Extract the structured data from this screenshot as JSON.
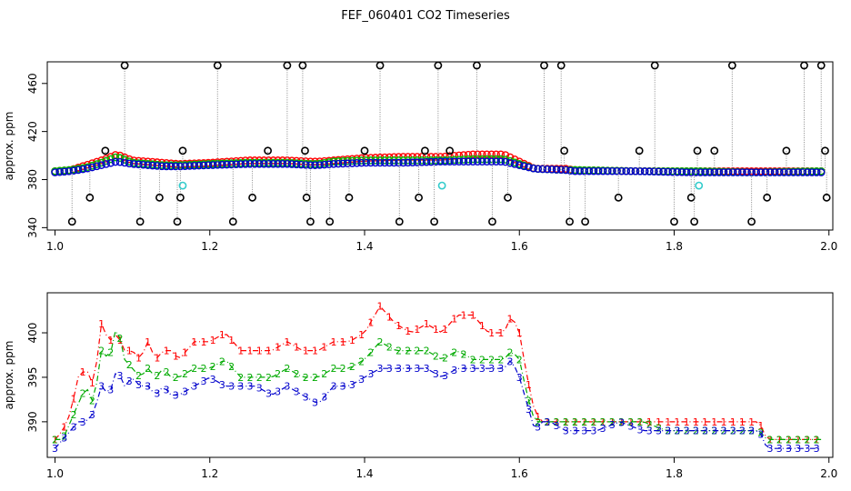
{
  "title": "FEF_060401  CO2 Timeseries",
  "chart_data": [
    {
      "type": "scatter",
      "ylabel": "approx. ppm",
      "xlabel": "",
      "xlim": [
        0.99,
        2.005
      ],
      "ylim": [
        338,
        478
      ],
      "xticks": [
        1.0,
        1.2,
        1.4,
        1.6,
        1.8,
        2.0
      ],
      "xtick_labels": [
        "1.0",
        "1.2",
        "1.4",
        "1.6",
        "1.8",
        "2.0"
      ],
      "yticks": [
        340,
        380,
        420,
        460
      ],
      "ytick_labels": [
        "340",
        "380",
        "420",
        "460"
      ],
      "series": [
        {
          "name": "red",
          "color": "#ff0000",
          "x": [
            1.0,
            1.02,
            1.04,
            1.06,
            1.08,
            1.1,
            1.12,
            1.14,
            1.16,
            1.2,
            1.25,
            1.3,
            1.33,
            1.34,
            1.36,
            1.4,
            1.45,
            1.5,
            1.54,
            1.58,
            1.6,
            1.62,
            1.66,
            1.67,
            1.75,
            1.82,
            1.83,
            1.9,
            1.99
          ],
          "values": [
            387,
            388,
            392,
            396,
            401,
            396,
            395,
            394,
            393,
            394,
            396,
            396,
            395,
            395,
            396,
            398,
            399,
            399,
            401,
            401,
            395,
            389,
            389,
            388,
            387,
            387,
            387,
            387,
            387
          ]
        },
        {
          "name": "green",
          "color": "#00bb00",
          "x": [
            1.0,
            1.02,
            1.04,
            1.06,
            1.08,
            1.1,
            1.12,
            1.14,
            1.16,
            1.2,
            1.25,
            1.3,
            1.33,
            1.34,
            1.36,
            1.4,
            1.45,
            1.5,
            1.54,
            1.58,
            1.6,
            1.62,
            1.66,
            1.67,
            1.75,
            1.82,
            1.83,
            1.9,
            1.99
          ],
          "values": [
            387,
            388,
            390,
            394,
            399,
            394,
            393,
            392,
            392,
            393,
            394,
            394,
            393,
            393,
            395,
            396,
            396,
            396,
            397,
            397,
            393,
            389,
            388,
            388,
            387,
            387,
            387,
            386,
            387
          ]
        },
        {
          "name": "blue",
          "color": "#0000cc",
          "x": [
            1.0,
            1.02,
            1.04,
            1.06,
            1.08,
            1.1,
            1.12,
            1.14,
            1.16,
            1.2,
            1.25,
            1.3,
            1.33,
            1.34,
            1.36,
            1.4,
            1.45,
            1.5,
            1.54,
            1.58,
            1.6,
            1.62,
            1.66,
            1.67,
            1.75,
            1.82,
            1.83,
            1.9,
            1.99
          ],
          "values": [
            386,
            387,
            389,
            392,
            395,
            393,
            392,
            391,
            391,
            392,
            393,
            393,
            392,
            392,
            393,
            394,
            394,
            395,
            395,
            395,
            392,
            389,
            388,
            387,
            387,
            386,
            386,
            386,
            386
          ]
        },
        {
          "name": "black-outliers",
          "color": "#000000",
          "x": [
            1.022,
            1.045,
            1.065,
            1.09,
            1.11,
            1.135,
            1.158,
            1.162,
            1.165,
            1.21,
            1.23,
            1.255,
            1.275,
            1.3,
            1.32,
            1.323,
            1.325,
            1.33,
            1.355,
            1.38,
            1.4,
            1.42,
            1.445,
            1.47,
            1.478,
            1.49,
            1.495,
            1.51,
            1.545,
            1.565,
            1.585,
            1.632,
            1.654,
            1.658,
            1.665,
            1.685,
            1.728,
            1.755,
            1.775,
            1.8,
            1.822,
            1.826,
            1.83,
            1.852,
            1.875,
            1.9,
            1.92,
            1.945,
            1.968,
            1.99,
            1.995,
            1.997
          ],
          "values": [
            345,
            365,
            404,
            475,
            345,
            365,
            345,
            365,
            404,
            475,
            345,
            365,
            404,
            475,
            475,
            404,
            365,
            345,
            345,
            365,
            404,
            475,
            345,
            365,
            404,
            345,
            475,
            404,
            475,
            345,
            365,
            475,
            475,
            404,
            345,
            345,
            365,
            404,
            475,
            345,
            365,
            345,
            404,
            404,
            475,
            345,
            365,
            404,
            475,
            475,
            404,
            365
          ]
        },
        {
          "name": "cyan",
          "color": "#33cccc",
          "x": [
            1.165,
            1.5,
            1.832
          ],
          "values": [
            375,
            375,
            375
          ]
        }
      ]
    },
    {
      "type": "line",
      "ylabel": "approx. ppm",
      "xlabel": "",
      "xlim": [
        0.99,
        2.005
      ],
      "ylim": [
        386,
        404.5
      ],
      "xticks": [
        1.0,
        1.2,
        1.4,
        1.6,
        1.8,
        2.0
      ],
      "xtick_labels": [
        "1.0",
        "1.2",
        "1.4",
        "1.6",
        "1.8",
        "2.0"
      ],
      "yticks": [
        390,
        395,
        400
      ],
      "ytick_labels": [
        "390",
        "395",
        "400"
      ],
      "series": [
        {
          "name": "1",
          "color": "#ff0000",
          "x": [
            1.0,
            1.01,
            1.02,
            1.03,
            1.04,
            1.05,
            1.06,
            1.07,
            1.08,
            1.09,
            1.1,
            1.11,
            1.12,
            1.13,
            1.14,
            1.15,
            1.16,
            1.18,
            1.2,
            1.22,
            1.24,
            1.26,
            1.28,
            1.3,
            1.32,
            1.34,
            1.36,
            1.38,
            1.4,
            1.42,
            1.44,
            1.46,
            1.48,
            1.5,
            1.52,
            1.54,
            1.56,
            1.58,
            1.59,
            1.6,
            1.61,
            1.62,
            1.63,
            1.64,
            1.66,
            1.67,
            1.7,
            1.73,
            1.76,
            1.79,
            1.82,
            1.83,
            1.86,
            1.89,
            1.91,
            1.92,
            1.94,
            1.96,
            1.98,
            1.99
          ],
          "values": [
            388,
            389,
            391,
            395,
            396,
            394,
            401,
            399,
            400,
            398,
            398,
            397,
            399,
            397,
            398,
            398,
            397,
            399,
            399,
            400,
            398,
            398,
            398,
            399,
            398,
            398,
            399,
            399,
            400,
            403,
            401,
            400,
            401,
            400,
            402,
            402,
            400,
            400,
            402,
            400,
            395,
            391,
            390,
            390,
            390,
            390,
            390,
            390,
            390,
            390,
            390,
            390,
            390,
            390,
            390,
            388,
            388,
            388,
            388,
            388
          ]
        },
        {
          "name": "2",
          "color": "#00aa00",
          "x": [
            1.0,
            1.01,
            1.02,
            1.03,
            1.04,
            1.05,
            1.06,
            1.07,
            1.08,
            1.09,
            1.1,
            1.11,
            1.12,
            1.13,
            1.14,
            1.15,
            1.16,
            1.18,
            1.2,
            1.22,
            1.24,
            1.26,
            1.28,
            1.3,
            1.32,
            1.34,
            1.36,
            1.38,
            1.4,
            1.42,
            1.44,
            1.46,
            1.48,
            1.5,
            1.52,
            1.54,
            1.56,
            1.58,
            1.59,
            1.6,
            1.61,
            1.62,
            1.63,
            1.64,
            1.66,
            1.67,
            1.7,
            1.73,
            1.76,
            1.79,
            1.82,
            1.83,
            1.86,
            1.89,
            1.91,
            1.92,
            1.94,
            1.96,
            1.98,
            1.99
          ],
          "values": [
            388,
            388,
            390,
            392,
            394,
            392,
            398,
            397,
            401,
            397,
            396,
            395,
            396,
            395,
            396,
            395,
            395,
            396,
            396,
            397,
            395,
            395,
            395,
            396,
            395,
            395,
            396,
            396,
            397,
            399,
            398,
            398,
            398,
            397,
            398,
            397,
            397,
            397,
            398,
            397,
            393,
            390,
            390,
            390,
            390,
            390,
            390,
            390,
            390,
            389,
            389,
            389,
            389,
            389,
            389,
            388,
            388,
            388,
            388,
            388
          ]
        },
        {
          "name": "3",
          "color": "#0000cc",
          "x": [
            1.0,
            1.01,
            1.02,
            1.03,
            1.04,
            1.05,
            1.06,
            1.07,
            1.08,
            1.09,
            1.1,
            1.11,
            1.12,
            1.13,
            1.14,
            1.15,
            1.16,
            1.18,
            1.2,
            1.22,
            1.24,
            1.26,
            1.28,
            1.3,
            1.32,
            1.34,
            1.36,
            1.38,
            1.4,
            1.42,
            1.44,
            1.46,
            1.48,
            1.5,
            1.52,
            1.54,
            1.56,
            1.58,
            1.59,
            1.6,
            1.61,
            1.62,
            1.63,
            1.64,
            1.66,
            1.67,
            1.7,
            1.73,
            1.76,
            1.79,
            1.82,
            1.83,
            1.86,
            1.89,
            1.91,
            1.92,
            1.94,
            1.96,
            1.98,
            1.99
          ],
          "values": [
            387,
            388,
            389,
            390,
            390,
            391,
            394,
            393,
            396,
            394,
            395,
            394,
            394,
            393,
            394,
            393,
            393,
            394,
            395,
            394,
            394,
            394,
            393,
            394,
            393,
            392,
            394,
            394,
            395,
            396,
            396,
            396,
            396,
            395,
            396,
            396,
            396,
            396,
            397,
            395,
            392,
            389,
            390,
            390,
            389,
            389,
            389,
            390,
            389,
            389,
            389,
            389,
            389,
            389,
            389,
            387,
            387,
            387,
            387,
            387
          ]
        }
      ]
    }
  ]
}
